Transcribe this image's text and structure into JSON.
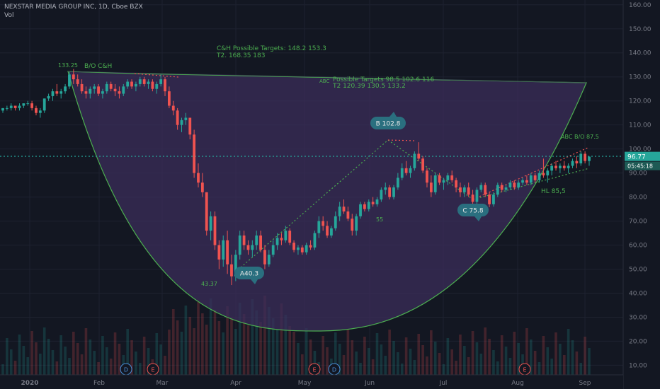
{
  "header": {
    "title": "NEXSTAR MEDIA GROUP INC, 1D, Cboe BZX",
    "volume_label": "Vol"
  },
  "colors": {
    "background": "#131722",
    "up": "#26a69a",
    "down": "#ef5350",
    "annotation": "#4caf50",
    "bubble": "#2a6f7f",
    "cup_fill": "#3b2d5a",
    "dashed_red": "#ef5350",
    "grid": "#1e2230"
  },
  "chart_data": {
    "type": "candlestick",
    "y_axis": {
      "ticks": [
        160.0,
        150.0,
        140.0,
        130.0,
        120.0,
        110.0,
        100.0,
        90.0,
        80.0,
        70.0,
        60.0,
        50.0,
        40.0,
        30.0,
        20.0,
        10.0
      ],
      "ylim": [
        6,
        162
      ]
    },
    "x_axis": {
      "ticks": [
        "2020",
        "Feb",
        "Mar",
        "Apr",
        "May",
        "Jun",
        "Jul",
        "Aug",
        "Sep"
      ]
    },
    "last_price": "96.77",
    "countdown": "05:45:18",
    "key_points": [
      {
        "label": "133.25",
        "x": "Jan 21",
        "y": 133.25
      },
      {
        "label": "43.37",
        "x": "Mar 23",
        "y": 43.37
      },
      {
        "label": "A40.3",
        "x": "Apr 6",
        "y": 50
      },
      {
        "label": "B 102.8",
        "x": "Jun 8",
        "y": 102.8
      },
      {
        "label": "C 75.8",
        "x": "Jul 13",
        "y": 75.8
      }
    ],
    "annotations": [
      "B/O C&H",
      "C&H Possible Targets:  148.2  153.3",
      "T2.  168.35      183",
      "ABC",
      "Possible Targets  98.5  102.6  116",
      "T2   120.39  130.5  133.2",
      "ABC B/O 87.5",
      "HL 85,5",
      "55"
    ],
    "events": [
      "D",
      "E",
      "E",
      "D",
      "E"
    ],
    "candles": [
      [
        116,
        117,
        115,
        117
      ],
      [
        117,
        118,
        116,
        117
      ],
      [
        117,
        119,
        116,
        118
      ],
      [
        118,
        118,
        116,
        117
      ],
      [
        117,
        119,
        116,
        118
      ],
      [
        118,
        119,
        117,
        119
      ],
      [
        119,
        120,
        118,
        119
      ],
      [
        119,
        120,
        116,
        117
      ],
      [
        117,
        118,
        114,
        115
      ],
      [
        115,
        117,
        113,
        116
      ],
      [
        116,
        121,
        115,
        121
      ],
      [
        121,
        123,
        120,
        122
      ],
      [
        122,
        125,
        120,
        124
      ],
      [
        124,
        127,
        122,
        123
      ],
      [
        123,
        125,
        121,
        124
      ],
      [
        124,
        127,
        123,
        126
      ],
      [
        126,
        132,
        125,
        131
      ],
      [
        131,
        133.25,
        127,
        129
      ],
      [
        129,
        131,
        126,
        127
      ],
      [
        127,
        129,
        123,
        124
      ],
      [
        124,
        126,
        121,
        123
      ],
      [
        123,
        126,
        121,
        125
      ],
      [
        125,
        127,
        123,
        126
      ],
      [
        126,
        127,
        122,
        123
      ],
      [
        123,
        125,
        121,
        124
      ],
      [
        124,
        128,
        123,
        127
      ],
      [
        127,
        128,
        124,
        125
      ],
      [
        125,
        127,
        122,
        124
      ],
      [
        124,
        126,
        121,
        123
      ],
      [
        123,
        127,
        122,
        126
      ],
      [
        126,
        129,
        125,
        128
      ],
      [
        128,
        129,
        125,
        126
      ],
      [
        126,
        128,
        124,
        127
      ],
      [
        127,
        130,
        126,
        129
      ],
      [
        129,
        130,
        126,
        127
      ],
      [
        127,
        129,
        125,
        128
      ],
      [
        128,
        129,
        124,
        125
      ],
      [
        125,
        128,
        123,
        127
      ],
      [
        127,
        131,
        126,
        129
      ],
      [
        129,
        130,
        122,
        124
      ],
      [
        124,
        126,
        117,
        118
      ],
      [
        118,
        120,
        114,
        116
      ],
      [
        116,
        117,
        108,
        110
      ],
      [
        110,
        113,
        107,
        112
      ],
      [
        112,
        115,
        110,
        113
      ],
      [
        113,
        113,
        104,
        106
      ],
      [
        106,
        108,
        88,
        90
      ],
      [
        90,
        94,
        84,
        86
      ],
      [
        86,
        90,
        80,
        82
      ],
      [
        82,
        82,
        64,
        66
      ],
      [
        66,
        74,
        62,
        72
      ],
      [
        72,
        74,
        58,
        60
      ],
      [
        60,
        62,
        50,
        54
      ],
      [
        54,
        64,
        51,
        62
      ],
      [
        62,
        66,
        48,
        52
      ],
      [
        52,
        56,
        43.37,
        47
      ],
      [
        47,
        58,
        45,
        56
      ],
      [
        56,
        66,
        54,
        64
      ],
      [
        64,
        66,
        58,
        60
      ],
      [
        60,
        62,
        56,
        58
      ],
      [
        58,
        62,
        55,
        60
      ],
      [
        60,
        66,
        58,
        64
      ],
      [
        64,
        66,
        57,
        58
      ],
      [
        58,
        60,
        50,
        52
      ],
      [
        52,
        58,
        51,
        56
      ],
      [
        56,
        62,
        55,
        60
      ],
      [
        60,
        65,
        58,
        63
      ],
      [
        63,
        65,
        60,
        62
      ],
      [
        62,
        68,
        61,
        66
      ],
      [
        66,
        67,
        60,
        61
      ],
      [
        61,
        62,
        57,
        58
      ],
      [
        58,
        60,
        56,
        59
      ],
      [
        59,
        60,
        56,
        57
      ],
      [
        57,
        61,
        56,
        60
      ],
      [
        60,
        62,
        58,
        59
      ],
      [
        59,
        66,
        58,
        65
      ],
      [
        65,
        72,
        63,
        70
      ],
      [
        70,
        72,
        66,
        68
      ],
      [
        68,
        70,
        63,
        64
      ],
      [
        64,
        68,
        63,
        67
      ],
      [
        67,
        74,
        66,
        72
      ],
      [
        72,
        78,
        70,
        76
      ],
      [
        76,
        79,
        73,
        74
      ],
      [
        74,
        76,
        70,
        71
      ],
      [
        71,
        73,
        64,
        66
      ],
      [
        66,
        73,
        64,
        72
      ],
      [
        72,
        78,
        71,
        77
      ],
      [
        77,
        78,
        74,
        75
      ],
      [
        75,
        79,
        74,
        78
      ],
      [
        78,
        80,
        76,
        77
      ],
      [
        77,
        80,
        76,
        79
      ],
      [
        79,
        84,
        78,
        83
      ],
      [
        83,
        86,
        81,
        84
      ],
      [
        84,
        85,
        79,
        80
      ],
      [
        80,
        85,
        79,
        84
      ],
      [
        84,
        90,
        83,
        88
      ],
      [
        88,
        94,
        87,
        92
      ],
      [
        92,
        95,
        89,
        90
      ],
      [
        90,
        93,
        88,
        92
      ],
      [
        92,
        99,
        91,
        98
      ],
      [
        98,
        102.8,
        95,
        96
      ],
      [
        96,
        97,
        90,
        91
      ],
      [
        91,
        92,
        84,
        86
      ],
      [
        86,
        89,
        80,
        82
      ],
      [
        82,
        90,
        81,
        89
      ],
      [
        89,
        90,
        85,
        86
      ],
      [
        86,
        88,
        83,
        87
      ],
      [
        87,
        90,
        85,
        89
      ],
      [
        89,
        91,
        86,
        87
      ],
      [
        87,
        88,
        82,
        84
      ],
      [
        84,
        86,
        80,
        82
      ],
      [
        82,
        85,
        80,
        84
      ],
      [
        84,
        86,
        80,
        81
      ],
      [
        81,
        83,
        77,
        78
      ],
      [
        78,
        84,
        77,
        83
      ],
      [
        83,
        86,
        82,
        85
      ],
      [
        85,
        86,
        80,
        81
      ],
      [
        81,
        82,
        75.8,
        77
      ],
      [
        77,
        82,
        76,
        81
      ],
      [
        81,
        86,
        80,
        85
      ],
      [
        85,
        86,
        82,
        83
      ],
      [
        83,
        85,
        82,
        84
      ],
      [
        84,
        87,
        83,
        86
      ],
      [
        86,
        87,
        83,
        84
      ],
      [
        84,
        87,
        83,
        86
      ],
      [
        86,
        88,
        85,
        87
      ],
      [
        87,
        89,
        85,
        86
      ],
      [
        86,
        90,
        85,
        89
      ],
      [
        89,
        90,
        86,
        87
      ],
      [
        87,
        91,
        86,
        90
      ],
      [
        90,
        96,
        88,
        89
      ],
      [
        89,
        92,
        86,
        91
      ],
      [
        91,
        94,
        89,
        93
      ],
      [
        93,
        95,
        91,
        92
      ],
      [
        92,
        94,
        90,
        93
      ],
      [
        93,
        95,
        91,
        92
      ],
      [
        92,
        94,
        90,
        93
      ],
      [
        93,
        96,
        92,
        95
      ],
      [
        95,
        97,
        92,
        94
      ],
      [
        94,
        99,
        93,
        98
      ],
      [
        98,
        99,
        94,
        95
      ],
      [
        95,
        97,
        93,
        96.77
      ]
    ]
  }
}
